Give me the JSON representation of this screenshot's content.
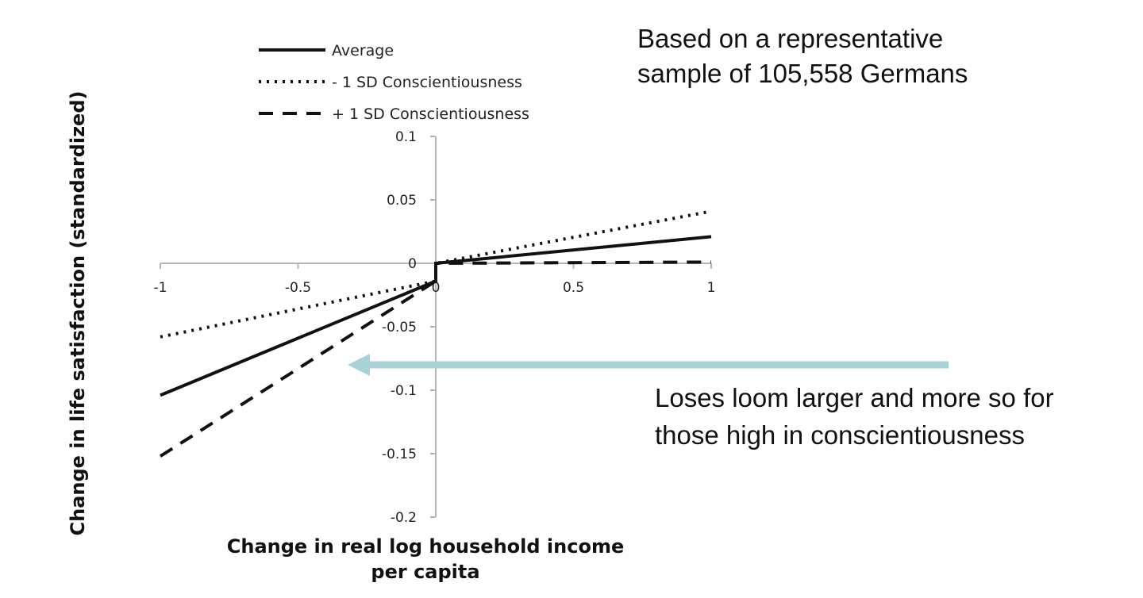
{
  "chart_data": {
    "type": "line",
    "title": "",
    "xlabel": [
      "Change in real log household income",
      "per capita"
    ],
    "ylabel": "Change in life satisfaction (standardized)",
    "xlim": [
      -1,
      1
    ],
    "ylim": [
      -0.2,
      0.1
    ],
    "x_ticks": [
      -1,
      -0.5,
      0,
      0.5,
      1
    ],
    "x_tick_labels": [
      "-1",
      "-0.5",
      "0",
      "0.5",
      "1"
    ],
    "y_ticks": [
      0.1,
      0.05,
      0,
      -0.05,
      -0.1,
      -0.15,
      -0.2
    ],
    "y_tick_labels": [
      "0.1",
      "0.05",
      "0",
      "-0.05",
      "-0.1",
      "-0.15",
      "-0.2"
    ],
    "grid": false,
    "legend_position": "top-left",
    "series": [
      {
        "name": "Average",
        "style": "solid",
        "points": [
          [
            -1,
            -0.104
          ],
          [
            0,
            -0.014
          ],
          [
            0,
            0
          ],
          [
            1,
            0.021
          ]
        ]
      },
      {
        "name": "- 1 SD Conscientiousness",
        "style": "dotted",
        "points": [
          [
            -1,
            -0.058
          ],
          [
            0,
            -0.014
          ],
          [
            0,
            0
          ],
          [
            1,
            0.041
          ]
        ]
      },
      {
        "name": "+ 1 SD Conscientiousness",
        "style": "dashed",
        "points": [
          [
            -1,
            -0.152
          ],
          [
            0,
            -0.014
          ],
          [
            0,
            0
          ],
          [
            1,
            0.001
          ]
        ]
      }
    ],
    "annotations": [
      {
        "id": "sample-note",
        "lines": [
          "Based on a representative",
          "sample of 105,558 Germans"
        ]
      },
      {
        "id": "losses-note",
        "lines": [
          "Loses loom larger and more so  for",
          "those high in conscientiousness"
        ],
        "arrow_color": "#a9d2d6"
      }
    ]
  }
}
